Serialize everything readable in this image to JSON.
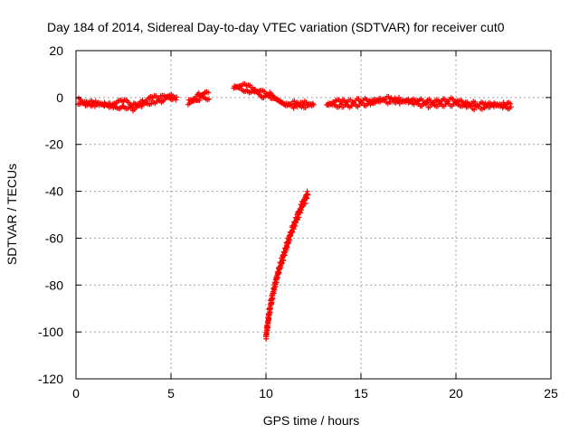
{
  "chart_data": {
    "type": "scatter",
    "title": "Day 184 of 2014, Sidereal Day-to-day VTEC variation (SDTVAR) for receiver cut0",
    "xlabel": "GPS time / hours",
    "ylabel": "SDTVAR / TECUs",
    "xlim": [
      0,
      25
    ],
    "ylim": [
      -120,
      20
    ],
    "xticks": [
      0,
      5,
      10,
      15,
      20,
      25
    ],
    "yticks": [
      -120,
      -100,
      -80,
      -60,
      -40,
      -20,
      0,
      20
    ],
    "grid": true,
    "marker": "plus",
    "color": "#ff0000",
    "segments": [
      {
        "x": [
          0.1,
          0.5,
          1.0,
          1.5,
          2.0,
          2.5,
          3.0,
          3.5,
          4.0,
          4.5,
          4.9,
          5.3
        ],
        "y": [
          -1.5,
          -2.5,
          -2.5,
          -3.0,
          -3.5,
          -2.5,
          -4.0,
          -2.5,
          -1.0,
          -0.5,
          0.5,
          -0.5
        ]
      },
      {
        "x": [
          5.9,
          6.2,
          6.5,
          6.8,
          7.0
        ],
        "y": [
          -2.0,
          -1.0,
          0.5,
          1.0,
          0.5
        ]
      },
      {
        "x": [
          8.3,
          8.6,
          9.0,
          9.4,
          9.8,
          10.2,
          10.6,
          11.0,
          11.5,
          12.0,
          12.5
        ],
        "y": [
          4.5,
          4.5,
          4.0,
          3.0,
          1.5,
          1.0,
          -1.0,
          -3.0,
          -3.0,
          -3.0,
          -3.0
        ]
      },
      {
        "x": [
          13.2,
          13.6,
          14.0,
          14.5,
          15.0,
          15.5,
          16.0,
          16.5,
          17.0,
          17.5,
          18.0,
          18.5,
          19.0,
          19.5,
          20.0,
          20.5,
          21.0,
          21.5,
          22.0,
          22.5,
          22.9
        ],
        "y": [
          -3.0,
          -2.5,
          -2.5,
          -2.5,
          -2.0,
          -2.0,
          -1.0,
          -1.0,
          -1.5,
          -1.5,
          -2.0,
          -2.5,
          -2.5,
          -2.0,
          -2.0,
          -3.0,
          -3.5,
          -3.5,
          -3.0,
          -3.5,
          -3.5
        ]
      },
      {
        "x": [
          10.0,
          10.15,
          10.3,
          10.5,
          10.7,
          10.9,
          11.1,
          11.3,
          11.5,
          11.7,
          11.9,
          12.1,
          12.2
        ],
        "y": [
          -102,
          -93,
          -86,
          -79,
          -73,
          -68,
          -63,
          -58,
          -54,
          -50,
          -46,
          -43,
          -41
        ]
      }
    ]
  }
}
